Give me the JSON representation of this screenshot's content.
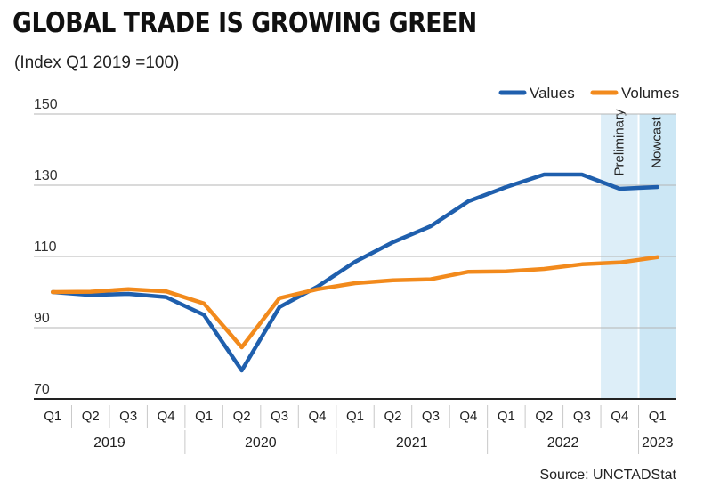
{
  "header": {
    "title": "GLOBAL TRADE IS GROWING GREEN",
    "subtitle": "(Index Q1 2019 =100)"
  },
  "footer": {
    "source": "Source: UNCTADStat"
  },
  "colors": {
    "values": "#1f5fad",
    "volumes": "#f28a1c",
    "preliminary_band": "#ddeef8",
    "nowcast_band": "#cce7f5"
  },
  "chart_data": {
    "type": "line",
    "ylim": [
      70,
      150
    ],
    "yticks": [
      70,
      90,
      110,
      130,
      150
    ],
    "categories": [
      "Q1",
      "Q2",
      "Q3",
      "Q4",
      "Q1",
      "Q2",
      "Q3",
      "Q4",
      "Q1",
      "Q2",
      "Q3",
      "Q4",
      "Q1",
      "Q2",
      "Q3",
      "Q4",
      "Q1"
    ],
    "years": [
      {
        "label": "2019",
        "start": 0,
        "end": 3
      },
      {
        "label": "2020",
        "start": 4,
        "end": 7
      },
      {
        "label": "2021",
        "start": 8,
        "end": 11
      },
      {
        "label": "2022",
        "start": 12,
        "end": 15
      },
      {
        "label": "2023",
        "start": 16,
        "end": 16
      }
    ],
    "series": [
      {
        "name": "Values",
        "color": "#1f5fad",
        "values": [
          100,
          99.2,
          99.5,
          98.6,
          93.6,
          78,
          95.8,
          101.5,
          108.5,
          114,
          118.5,
          125.5,
          129.5,
          133,
          133,
          129,
          129.5
        ]
      },
      {
        "name": "Volumes",
        "color": "#f28a1c",
        "values": [
          100,
          100.1,
          100.8,
          100.2,
          96.8,
          84.5,
          98.3,
          100.8,
          102.5,
          103.3,
          103.6,
          105.7,
          105.8,
          106.5,
          107.8,
          108.3,
          109.8
        ]
      }
    ],
    "bands": [
      {
        "label": "Preliminary",
        "index": 15
      },
      {
        "label": "Nowcast",
        "index": 16
      }
    ],
    "grid": true,
    "legend_position": "top-right"
  }
}
